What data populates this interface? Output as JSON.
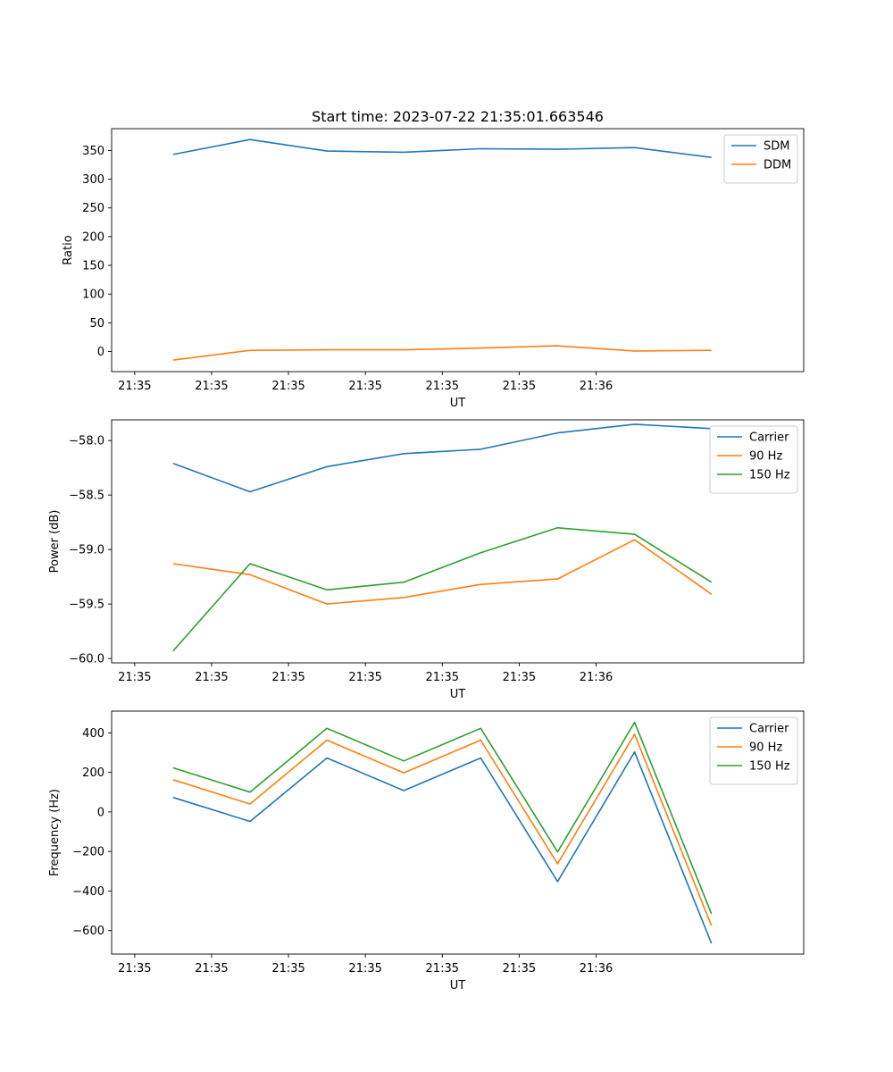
{
  "chart_data": [
    {
      "type": "line",
      "title": "Start time: 2023-07-22 21:35:01.663546",
      "xlabel": "UT",
      "ylabel": "Ratio",
      "xlim": [
        -0.3,
        8.7
      ],
      "ylim": [
        -35,
        388
      ],
      "x": [
        0.5,
        1.5,
        2.5,
        3.5,
        4.5,
        5.5,
        6.5,
        7.5
      ],
      "x_ticks": [
        0,
        1,
        2,
        3,
        4,
        5,
        6
      ],
      "x_tick_labels": [
        "21:35",
        "21:35",
        "21:35",
        "21:35",
        "21:35",
        "21:35",
        "21:36"
      ],
      "y_ticks": [
        0,
        50,
        100,
        150,
        200,
        250,
        300,
        350
      ],
      "y_tick_labels": [
        "0",
        "50",
        "100",
        "150",
        "200",
        "250",
        "300",
        "350"
      ],
      "legend": "top-right",
      "series": [
        {
          "name": "SDM",
          "color": "#1f77b4",
          "values": [
            343,
            369,
            349,
            347,
            353,
            352,
            355,
            338
          ]
        },
        {
          "name": "DDM",
          "color": "#ff7f0e",
          "values": [
            -15,
            2,
            3,
            3,
            6,
            10,
            1,
            2
          ]
        }
      ]
    },
    {
      "type": "line",
      "title": "",
      "xlabel": "UT",
      "ylabel": "Power (dB)",
      "xlim": [
        -0.3,
        8.7
      ],
      "ylim": [
        -60.04,
        -57.81
      ],
      "x": [
        0.5,
        1.5,
        2.5,
        3.5,
        4.5,
        5.5,
        6.5,
        7.5
      ],
      "x_ticks": [
        0,
        1,
        2,
        3,
        4,
        5,
        6
      ],
      "x_tick_labels": [
        "21:35",
        "21:35",
        "21:35",
        "21:35",
        "21:35",
        "21:35",
        "21:36"
      ],
      "y_ticks": [
        -60.0,
        -59.5,
        -59.0,
        -58.5,
        -58.0
      ],
      "y_tick_labels": [
        "−60.0",
        "−59.5",
        "−59.0",
        "−58.5",
        "−58.0"
      ],
      "legend": "top-right",
      "series": [
        {
          "name": "Carrier",
          "color": "#1f77b4",
          "values": [
            -58.21,
            -58.47,
            -58.24,
            -58.12,
            -58.08,
            -57.93,
            -57.85,
            -57.89
          ]
        },
        {
          "name": "90 Hz",
          "color": "#ff7f0e",
          "values": [
            -59.13,
            -59.23,
            -59.5,
            -59.44,
            -59.32,
            -59.27,
            -58.91,
            -59.41
          ]
        },
        {
          "name": "150 Hz",
          "color": "#2ca02c",
          "values": [
            -59.93,
            -59.13,
            -59.37,
            -59.3,
            -59.03,
            -58.8,
            -58.86,
            -59.3
          ]
        }
      ]
    },
    {
      "type": "line",
      "title": "",
      "xlabel": "UT",
      "ylabel": "Frequency (Hz)",
      "xlim": [
        -0.3,
        8.7
      ],
      "ylim": [
        -719,
        510
      ],
      "x": [
        0.5,
        1.5,
        2.5,
        3.5,
        4.5,
        5.5,
        6.5,
        7.5
      ],
      "x_ticks": [
        0,
        1,
        2,
        3,
        4,
        5,
        6
      ],
      "x_tick_labels": [
        "21:35",
        "21:35",
        "21:35",
        "21:35",
        "21:35",
        "21:35",
        "21:36"
      ],
      "y_ticks": [
        -600,
        -400,
        -200,
        0,
        200,
        400
      ],
      "y_tick_labels": [
        "−600",
        "−400",
        "−200",
        "0",
        "200",
        "400"
      ],
      "legend": "top-right",
      "series": [
        {
          "name": "Carrier",
          "color": "#1f77b4",
          "values": [
            73,
            -48,
            273,
            108,
            273,
            -352,
            303,
            -665
          ]
        },
        {
          "name": "90 Hz",
          "color": "#ff7f0e",
          "values": [
            163,
            40,
            363,
            198,
            363,
            -262,
            393,
            -575
          ]
        },
        {
          "name": "150 Hz",
          "color": "#2ca02c",
          "values": [
            223,
            100,
            423,
            258,
            423,
            -202,
            453,
            -515
          ]
        }
      ]
    }
  ]
}
